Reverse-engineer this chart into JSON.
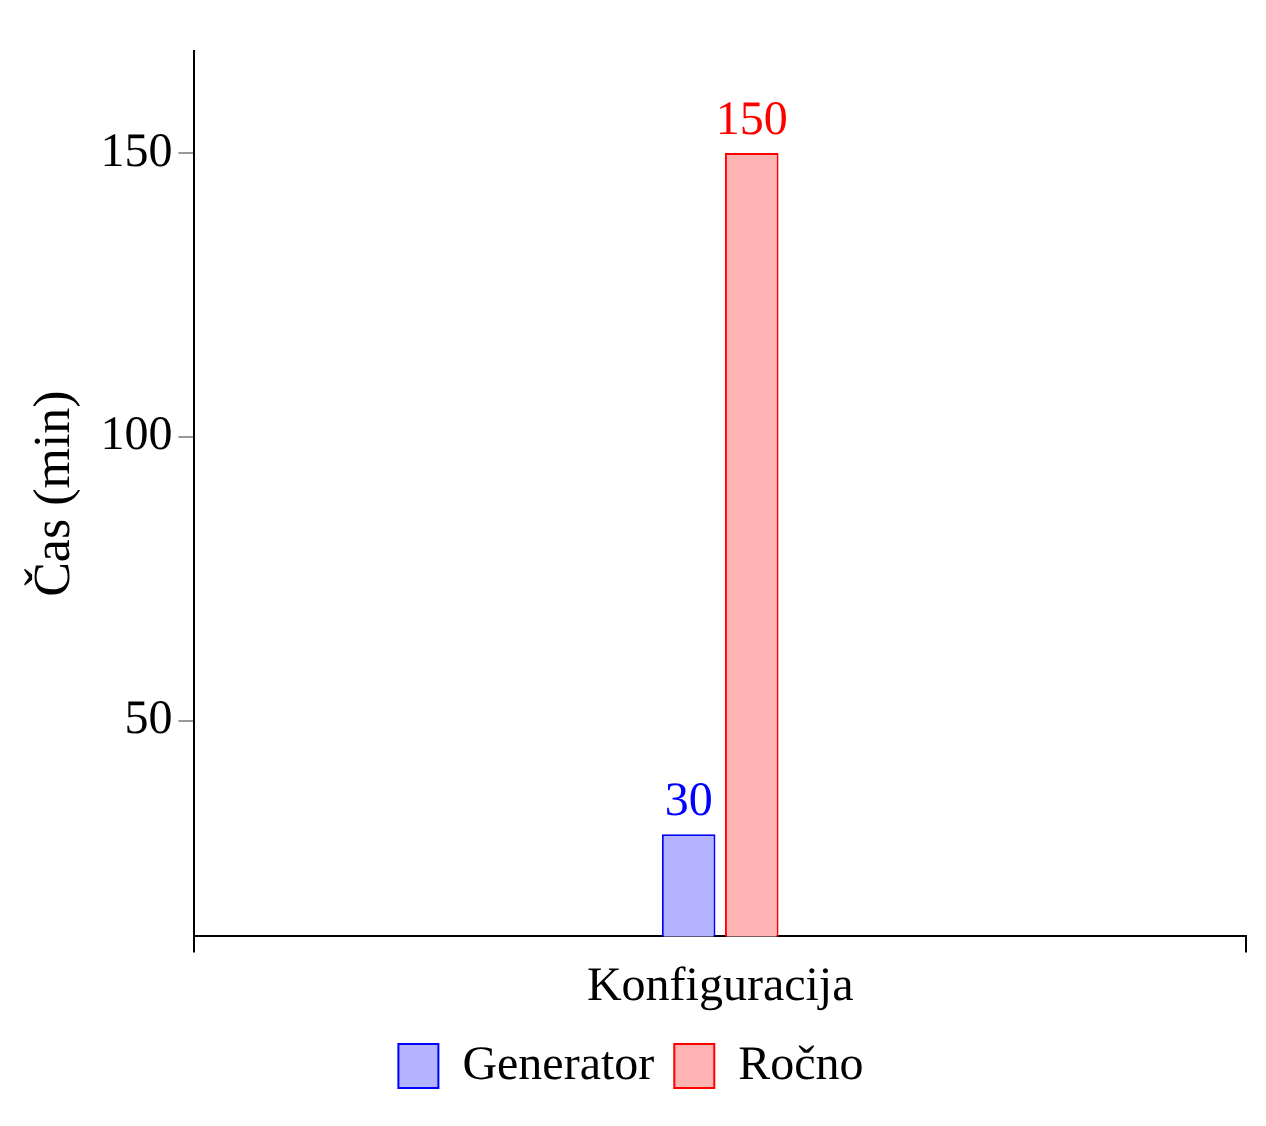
{
  "chart_data": {
    "type": "bar",
    "ylabel": "Čas (min)",
    "categories": [
      "Konfiguracija"
    ],
    "series": [
      {
        "name": "Generator",
        "color": "#b3b3ff",
        "values": [
          30
        ]
      },
      {
        "name": "Ročno",
        "color": "#ffb3b3",
        "values": [
          150
        ]
      }
    ],
    "ylim": [
      12,
      168
    ],
    "yticks": [
      50,
      100,
      150
    ],
    "data_labels": true,
    "legend": "bottom",
    "grid": false
  }
}
